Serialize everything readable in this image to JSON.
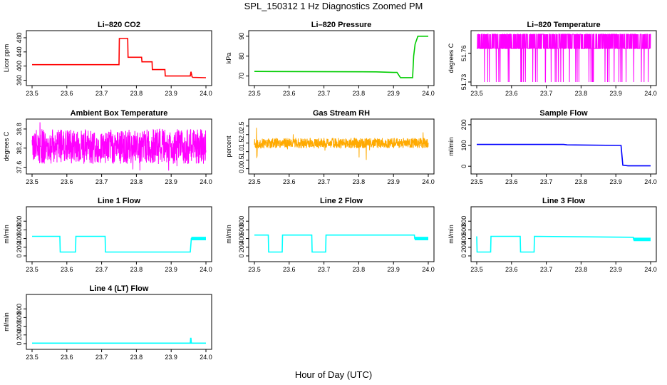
{
  "title": "SPL_150312  1 Hz Diagnostics Zoomed PM",
  "x_axis_title": "Hour of Day (UTC)",
  "chart_data": [
    {
      "type": "line",
      "title": "Li–820 CO2",
      "ylabel": "Licor ppm",
      "color": "#ff0000",
      "xlim": [
        23.5,
        24.0
      ],
      "xticks": [
        "23.5",
        "23.6",
        "23.7",
        "23.8",
        "23.9",
        "24.0"
      ],
      "ylim": [
        355,
        490
      ],
      "yticks": [
        "360",
        "400",
        "440",
        "480"
      ],
      "series": [
        {
          "x": [
            23.5,
            23.75,
            23.751,
            23.775,
            23.776,
            23.815,
            23.816,
            23.845,
            23.846,
            23.882,
            23.883,
            23.955,
            23.957,
            23.96,
            23.962,
            24.0
          ],
          "y": [
            404,
            404,
            478,
            478,
            425,
            425,
            412,
            412,
            390,
            390,
            372,
            372,
            384,
            370,
            368,
            367
          ]
        }
      ]
    },
    {
      "type": "line",
      "title": "Li–820 Pressure",
      "ylabel": "kPa",
      "color": "#00cc00",
      "xlim": [
        23.5,
        24.0
      ],
      "xticks": [
        "23.5",
        "23.6",
        "23.7",
        "23.8",
        "23.9",
        "24.0"
      ],
      "ylim": [
        67,
        91
      ],
      "yticks": [
        "70",
        "80",
        "90"
      ],
      "series": [
        {
          "x": [
            23.5,
            23.85,
            23.9,
            23.91,
            23.92,
            23.955,
            23.958,
            23.962,
            23.97,
            23.975,
            24.0
          ],
          "y": [
            72.3,
            72.1,
            71.8,
            71.8,
            69.2,
            69.2,
            80,
            86,
            90,
            90,
            90
          ]
        }
      ]
    },
    {
      "type": "line",
      "title": "Li–820 Temperature",
      "ylabel": "degrees C",
      "color": "#ff00ff",
      "xlim": [
        23.5,
        24.0
      ],
      "xticks": [
        "23.5",
        "23.6",
        "23.7",
        "23.8",
        "23.9",
        "24.0"
      ],
      "ylim": [
        51.73,
        51.78
      ],
      "yticks": [
        "51.73",
        "51.76"
      ],
      "series": [
        {
          "x": [
            23.5,
            24.0
          ],
          "y": [
            51.765,
            51.78
          ]
        }
      ],
      "ticks_only_low": [
        51.73,
        51.76
      ]
    },
    {
      "type": "line",
      "title": "Ambient Box Temperature",
      "ylabel": "degrees C",
      "color": "#ff00ff",
      "xlim": [
        23.5,
        24.0
      ],
      "xticks": [
        "23.5",
        "23.6",
        "23.7",
        "23.8",
        "23.9",
        "24.0"
      ],
      "ylim": [
        37.5,
        39.0
      ],
      "yticks": [
        "37.6",
        "38.2",
        "38.8"
      ],
      "series": [
        {
          "x": [
            23.5,
            24.0
          ],
          "y": [
            37.6,
            38.9
          ]
        }
      ]
    },
    {
      "type": "line",
      "title": "Gas Stream RH",
      "ylabel": "percent",
      "color": "#ffaa00",
      "xlim": [
        23.5,
        24.0
      ],
      "xticks": [
        "23.5",
        "23.6",
        "23.7",
        "23.8",
        "23.9",
        "24.0"
      ],
      "ylim": [
        -0.1,
        2.7
      ],
      "yticks": [
        "0.0",
        "0.5",
        "1.0",
        "1.5",
        "2.0",
        "2.5"
      ],
      "series": [
        {
          "x": [
            23.5,
            24.0
          ],
          "y": [
            1.2,
            1.8
          ]
        }
      ]
    },
    {
      "type": "line",
      "title": "Sample Flow",
      "ylabel": "ml/min",
      "color": "#0000ff",
      "xlim": [
        23.5,
        24.0
      ],
      "xticks": [
        "23.5",
        "23.6",
        "23.7",
        "23.8",
        "23.9",
        "24.0"
      ],
      "ylim": [
        -20,
        210
      ],
      "yticks": [
        "0",
        "100",
        "200"
      ],
      "series": [
        {
          "x": [
            23.5,
            23.75,
            23.76,
            23.915,
            23.92,
            23.935,
            24.0
          ],
          "y": [
            105,
            105,
            103,
            100,
            5,
            2,
            2
          ]
        }
      ]
    },
    {
      "type": "line",
      "title": "Line 1 Flow",
      "ylabel": "ml/min",
      "color": "#00ffff",
      "xlim": [
        23.5,
        24.0
      ],
      "xticks": [
        "23.5",
        "23.6",
        "23.7",
        "23.8",
        "23.9",
        "24.0"
      ],
      "ylim": [
        -50,
        1050
      ],
      "yticks": [
        "0",
        "200",
        "400",
        "600",
        "800"
      ],
      "series": [
        {
          "x": [
            23.5,
            23.501,
            23.58,
            23.581,
            23.625,
            23.626,
            23.71,
            23.711,
            23.955,
            23.958,
            24.0
          ],
          "y": [
            450,
            450,
            450,
            90,
            90,
            450,
            450,
            90,
            90,
            400,
            400
          ]
        }
      ]
    },
    {
      "type": "line",
      "title": "Line 2 Flow",
      "ylabel": "ml/min",
      "color": "#00ffff",
      "xlim": [
        23.5,
        24.0
      ],
      "xticks": [
        "23.5",
        "23.6",
        "23.7",
        "23.8",
        "23.9",
        "24.0"
      ],
      "ylim": [
        -50,
        1050
      ],
      "yticks": [
        "0",
        "200",
        "400",
        "600",
        "800"
      ],
      "series": [
        {
          "x": [
            23.5,
            23.54,
            23.541,
            23.58,
            23.581,
            23.665,
            23.666,
            23.705,
            23.706,
            23.96,
            23.961,
            24.0
          ],
          "y": [
            480,
            480,
            90,
            90,
            480,
            480,
            90,
            90,
            480,
            480,
            400,
            400
          ]
        }
      ]
    },
    {
      "type": "line",
      "title": "Line 3 Flow",
      "ylabel": "ml/min",
      "color": "#00ffff",
      "xlim": [
        23.5,
        24.0
      ],
      "xticks": [
        "23.5",
        "23.6",
        "23.7",
        "23.8",
        "23.9",
        "24.0"
      ],
      "ylim": [
        -50,
        1050
      ],
      "yticks": [
        "0",
        "200",
        "400",
        "600",
        "800"
      ],
      "series": [
        {
          "x": [
            23.5,
            23.501,
            23.54,
            23.541,
            23.625,
            23.626,
            23.665,
            23.666,
            23.95,
            23.951,
            24.0
          ],
          "y": [
            450,
            90,
            90,
            450,
            450,
            90,
            90,
            450,
            430,
            380,
            380
          ]
        }
      ]
    },
    {
      "type": "line",
      "title": "Line 4 (LT) Flow",
      "ylabel": "ml/min",
      "color": "#00ffff",
      "xlim": [
        23.5,
        24.0
      ],
      "xticks": [
        "23.5",
        "23.6",
        "23.7",
        "23.8",
        "23.9",
        "24.0"
      ],
      "ylim": [
        -50,
        1050
      ],
      "yticks": [
        "0",
        "200",
        "400",
        "600",
        "800"
      ],
      "series": [
        {
          "x": [
            23.5,
            23.955,
            23.956,
            23.957,
            23.958,
            24.0
          ],
          "y": [
            10,
            10,
            120,
            120,
            10,
            10
          ]
        }
      ]
    }
  ]
}
